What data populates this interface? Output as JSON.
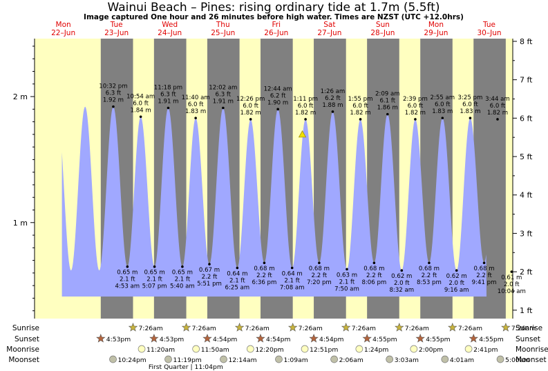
{
  "chart_data": {
    "type": "area",
    "title": "Wainui Beach – Pines: rising  ordinary tide at 1.7m (5.5ft)",
    "subtitle": "Image captured One hour and 26 minutes before high water. Times are NZST (UTC +12.0hrs)",
    "days": [
      {
        "dow": "Mon",
        "date": "22–Jun"
      },
      {
        "dow": "Tue",
        "date": "23–Jun"
      },
      {
        "dow": "Wed",
        "date": "24–Jun"
      },
      {
        "dow": "Thu",
        "date": "25–Jun"
      },
      {
        "dow": "Fri",
        "date": "26–Jun"
      },
      {
        "dow": "Sat",
        "date": "27–Jun"
      },
      {
        "dow": "Sun",
        "date": "28–Jun"
      },
      {
        "dow": "Mon",
        "date": "29–Jun"
      },
      {
        "dow": "Tue",
        "date": "30–Jun"
      }
    ],
    "y_left_ticks": [
      "1 m",
      "2 m"
    ],
    "y_right_ticks": [
      "1 ft",
      "2 ft",
      "3 ft",
      "4 ft",
      "5 ft",
      "6 ft",
      "7 ft",
      "8 ft"
    ],
    "ylim_m": [
      0.238,
      2.46
    ],
    "tides": [
      {
        "type": "high",
        "day": 0,
        "time": "10:32 pm",
        "ft": "6.3 ft",
        "m": "1.92 m",
        "height": 1.92
      },
      {
        "type": "low",
        "day": 1,
        "time": "4:53 am",
        "ft": "2.1 ft",
        "m": "0.65 m",
        "height": 0.65
      },
      {
        "type": "high",
        "day": 1,
        "time": "10:54 am",
        "ft": "6.0 ft",
        "m": "1.84 m",
        "height": 1.84
      },
      {
        "type": "low",
        "day": 1,
        "time": "5:07 pm",
        "ft": "2.1 ft",
        "m": "0.65 m",
        "height": 0.65
      },
      {
        "type": "high",
        "day": 1,
        "time": "11:18 pm",
        "ft": "6.3 ft",
        "m": "1.91 m",
        "height": 1.91
      },
      {
        "type": "low",
        "day": 2,
        "time": "5:40 am",
        "ft": "2.1 ft",
        "m": "0.65 m",
        "height": 0.65
      },
      {
        "type": "high",
        "day": 2,
        "time": "11:40 am",
        "ft": "6.0 ft",
        "m": "1.83 m",
        "height": 1.83
      },
      {
        "type": "low",
        "day": 2,
        "time": "5:51 pm",
        "ft": "2.2 ft",
        "m": "0.67 m",
        "height": 0.67
      },
      {
        "type": "high",
        "day": 3,
        "time": "12:02 am",
        "ft": "6.3 ft",
        "m": "1.91 m",
        "height": 1.91
      },
      {
        "type": "low",
        "day": 3,
        "time": "6:25 am",
        "ft": "2.1 ft",
        "m": "0.64 m",
        "height": 0.64
      },
      {
        "type": "high",
        "day": 3,
        "time": "12:26 pm",
        "ft": "6.0 ft",
        "m": "1.82 m",
        "height": 1.82
      },
      {
        "type": "low",
        "day": 3,
        "time": "6:36 pm",
        "ft": "2.2 ft",
        "m": "0.68 m",
        "height": 0.68
      },
      {
        "type": "high",
        "day": 4,
        "time": "12:44 am",
        "ft": "6.2 ft",
        "m": "1.90 m",
        "height": 1.9
      },
      {
        "type": "low",
        "day": 4,
        "time": "7:08 am",
        "ft": "2.1 ft",
        "m": "0.64 m",
        "height": 0.64
      },
      {
        "type": "high",
        "day": 4,
        "time": "1:11 pm",
        "ft": "6.0 ft",
        "m": "1.82 m",
        "height": 1.82
      },
      {
        "type": "low",
        "day": 4,
        "time": "7:20 pm",
        "ft": "2.2 ft",
        "m": "0.68 m",
        "height": 0.68
      },
      {
        "type": "high",
        "day": 5,
        "time": "1:26 am",
        "ft": "6.2 ft",
        "m": "1.88 m",
        "height": 1.88
      },
      {
        "type": "low",
        "day": 5,
        "time": "7:50 am",
        "ft": "2.1 ft",
        "m": "0.63 m",
        "height": 0.63
      },
      {
        "type": "high",
        "day": 5,
        "time": "1:55 pm",
        "ft": "6.0 ft",
        "m": "1.82 m",
        "height": 1.82
      },
      {
        "type": "low",
        "day": 5,
        "time": "8:06 pm",
        "ft": "2.2 ft",
        "m": "0.68 m",
        "height": 0.68
      },
      {
        "type": "high",
        "day": 6,
        "time": "2:09 am",
        "ft": "6.1 ft",
        "m": "1.86 m",
        "height": 1.86
      },
      {
        "type": "low",
        "day": 6,
        "time": "8:32 am",
        "ft": "2.0 ft",
        "m": "0.62 m",
        "height": 0.62
      },
      {
        "type": "high",
        "day": 6,
        "time": "2:39 pm",
        "ft": "6.0 ft",
        "m": "1.82 m",
        "height": 1.82
      },
      {
        "type": "low",
        "day": 6,
        "time": "8:53 pm",
        "ft": "2.2 ft",
        "m": "0.68 m",
        "height": 0.68
      },
      {
        "type": "high",
        "day": 7,
        "time": "2:55 am",
        "ft": "6.0 ft",
        "m": "1.83 m",
        "height": 1.83
      },
      {
        "type": "low",
        "day": 7,
        "time": "9:16 am",
        "ft": "2.0 ft",
        "m": "0.62 m",
        "height": 0.62
      },
      {
        "type": "high",
        "day": 7,
        "time": "3:25 pm",
        "ft": "6.0 ft",
        "m": "1.83 m",
        "height": 1.83
      },
      {
        "type": "low",
        "day": 7,
        "time": "9:41 pm",
        "ft": "2.2 ft",
        "m": "0.68 m",
        "height": 0.68
      },
      {
        "type": "high",
        "day": 8,
        "time": "3:44 am",
        "ft": "6.0 ft",
        "m": "1.82 m",
        "height": 1.82
      },
      {
        "type": "low",
        "day": 8,
        "time": "10:04 am",
        "ft": "2.0 ft",
        "m": "0.61 m",
        "height": 0.61
      }
    ],
    "current": {
      "day": 4,
      "time": "11:45 am",
      "height": 1.7
    },
    "sunrise": [
      "7:26am",
      "7:26am",
      "7:26am",
      "7:26am",
      "7:26am",
      "7:26am",
      "7:26am",
      "7:26am"
    ],
    "sunset": [
      "4:53pm",
      "4:53pm",
      "4:54pm",
      "4:54pm",
      "4:54pm",
      "4:55pm",
      "4:55pm",
      "4:55pm"
    ],
    "moonrise": [
      "11:20am",
      "11:50am",
      "12:20pm",
      "12:51pm",
      "1:24pm",
      "2:00pm",
      "2:41pm"
    ],
    "moonset": [
      "10:24pm",
      "11:19pm",
      "12:14am",
      "1:09am",
      "2:06am",
      "3:03am",
      "4:01am",
      "5:00am"
    ],
    "moon_phase_note": "First Quarter | 11:04pm",
    "row_labels": {
      "sunrise": "Sunrise",
      "sunset": "Sunset",
      "moonrise": "Moonrise",
      "moonset": "Moonset"
    },
    "colors": {
      "daylight": "#ffffc0",
      "night": "#808080",
      "water": "#a0a8ff",
      "day_label": "#e00000",
      "sun": "#c8b43c",
      "sunset_star": "#b4643c",
      "moonrise": "#ffffc0",
      "moonset": "#c0c0a8"
    }
  }
}
